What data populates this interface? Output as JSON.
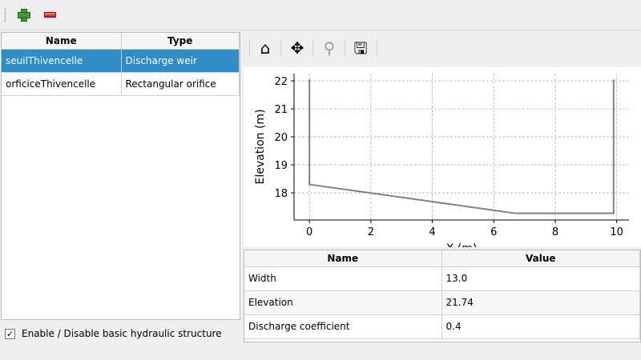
{
  "toolbar": {
    "add": "add-icon",
    "remove": "remove-icon"
  },
  "structures": {
    "headers": [
      "Name",
      "Type"
    ],
    "rows": [
      {
        "name": "seuilThivencelle",
        "type": "Discharge weir",
        "selected": true
      },
      {
        "name": "orficiceThivencelle",
        "type": "Rectangular orifice",
        "selected": false
      }
    ]
  },
  "enable_checkbox": {
    "label": "Enable / Disable basic hydraulic structure",
    "checked": true,
    "mark": "✓"
  },
  "plot_toolbar": [
    "home-icon",
    "pan-icon",
    "zoom-icon",
    "save-icon"
  ],
  "chart_data": {
    "type": "line",
    "xlabel": "X (m)",
    "ylabel": "Elevation (m)",
    "xlim": [
      -0.5,
      10.4
    ],
    "ylim": [
      17.03,
      22.26
    ],
    "xticks": [
      0,
      2,
      4,
      6,
      8,
      10
    ],
    "yticks": [
      18,
      19,
      20,
      21,
      22
    ],
    "grid": true,
    "color": "#808080",
    "series": [
      {
        "x": [
          0,
          0,
          6.7,
          9.9,
          9.9
        ],
        "y": [
          22.05,
          18.3,
          17.27,
          17.27,
          22.05
        ]
      }
    ]
  },
  "params": {
    "headers": [
      "Name",
      "Value"
    ],
    "rows": [
      {
        "name": "Width",
        "value": "13.0"
      },
      {
        "name": "Elevation",
        "value": "21.74"
      },
      {
        "name": "Discharge coefficient",
        "value": "0.4"
      }
    ]
  }
}
